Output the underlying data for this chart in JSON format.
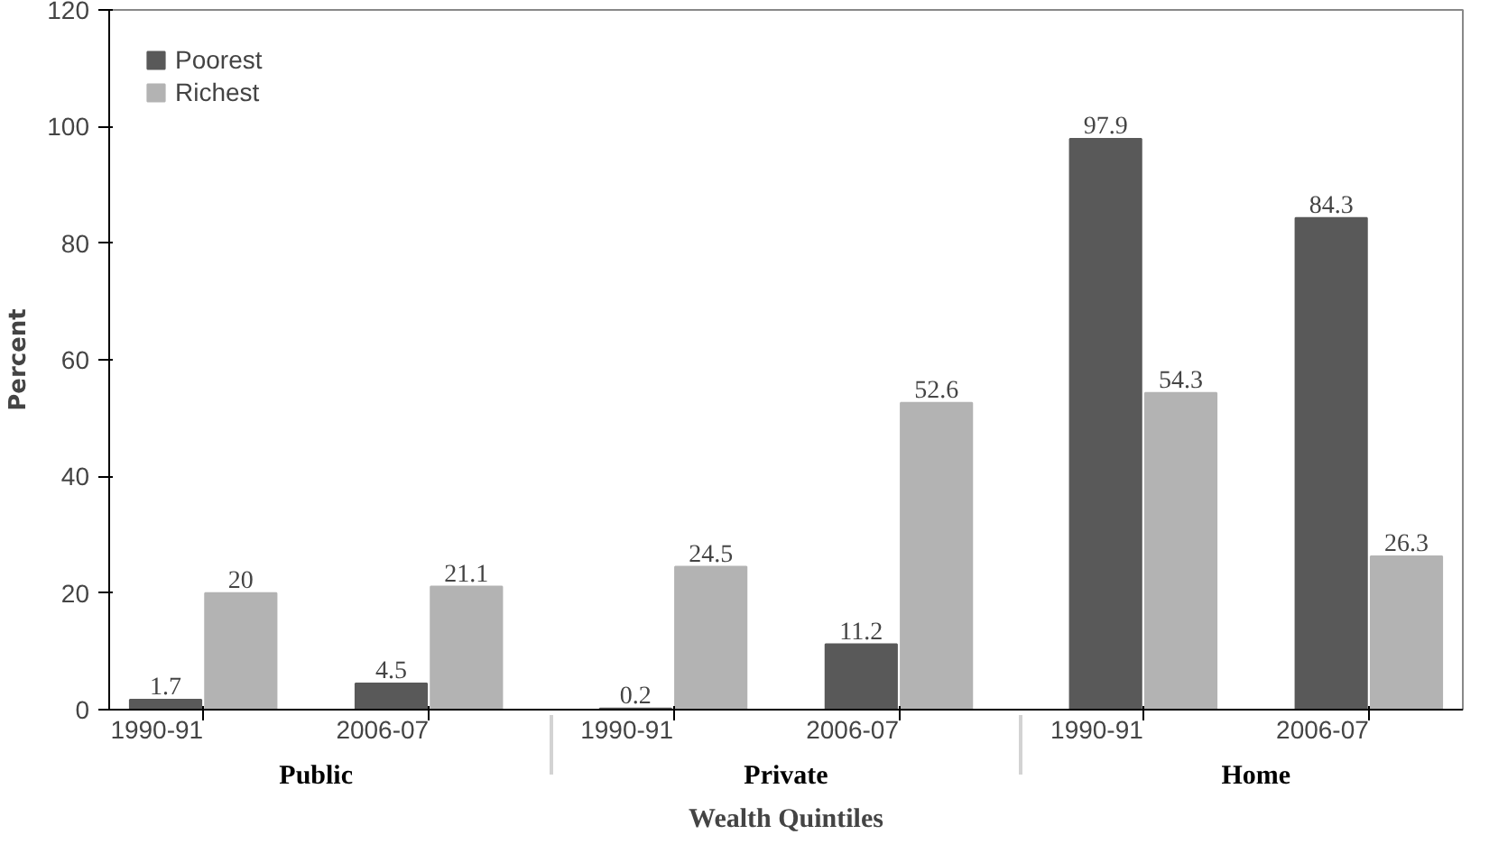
{
  "chart_data": {
    "type": "bar",
    "ylabel": "Percent",
    "xlabel": "Wealth Quintiles",
    "categories": [
      "1990-91",
      "2006-07",
      "1990-91",
      "2006-07",
      "1990-91",
      "2006-07"
    ],
    "annotations": [
      "Public",
      "Private",
      "Home"
    ],
    "series": [
      {
        "name": "Poorest",
        "color": "#595959",
        "values": [
          1.7,
          4.5,
          0.2,
          11.2,
          97.9,
          84.3
        ]
      },
      {
        "name": "Richest",
        "color": "#b3b3b3",
        "values": [
          20,
          21.1,
          24.5,
          52.6,
          54.3,
          26.3
        ]
      }
    ],
    "ylim": [
      0,
      120
    ],
    "yticks": [
      0,
      20,
      40,
      60,
      80,
      100,
      120
    ],
    "data_labels": true,
    "legend": "top left",
    "grid": false
  }
}
